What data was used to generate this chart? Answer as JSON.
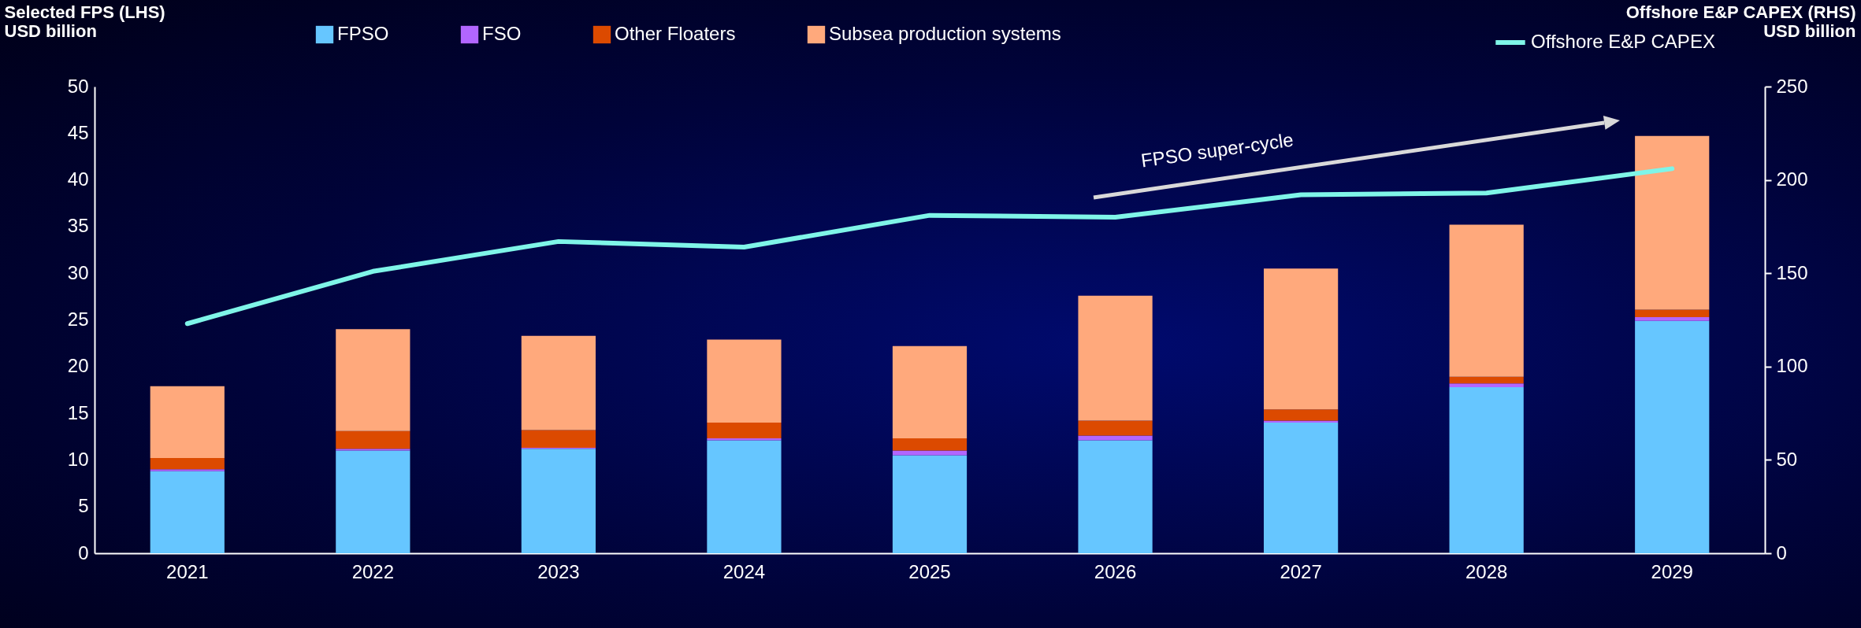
{
  "chart_data": {
    "type": "bar",
    "stacked": true,
    "ylabel": "Selected FPS (LHS)\nUSD billion",
    "y2label": "Offshore E&P CAPEX (RHS)\nUSD billion",
    "categories": [
      "2021",
      "2022",
      "2023",
      "2024",
      "2025",
      "2026",
      "2027",
      "2028",
      "2029"
    ],
    "series": [
      {
        "name": "FPSO",
        "color": "#66c6ff",
        "values": [
          8.8,
          11.0,
          11.2,
          12.1,
          10.5,
          12.1,
          14.0,
          17.8,
          24.9
        ]
      },
      {
        "name": "FSO",
        "color": "#b266ff",
        "values": [
          0.2,
          0.2,
          0.1,
          0.2,
          0.5,
          0.5,
          0.2,
          0.4,
          0.4
        ]
      },
      {
        "name": "Other Floaters",
        "color": "#dc4a00",
        "values": [
          1.2,
          1.9,
          1.9,
          1.7,
          1.3,
          1.6,
          1.2,
          0.7,
          0.8
        ]
      },
      {
        "name": "Subsea production systems",
        "color": "#ffa97c",
        "values": [
          7.7,
          10.9,
          10.1,
          8.9,
          9.9,
          13.4,
          15.1,
          16.3,
          18.6
        ]
      },
      {
        "name": "Offshore E&P CAPEX",
        "color": "#7ff5e8",
        "type": "line",
        "axis": "y2",
        "values": [
          123,
          151,
          167,
          164,
          181,
          180,
          192,
          193,
          206
        ]
      }
    ],
    "ylim": [
      0,
      50
    ],
    "yticks": [
      0,
      5,
      10,
      15,
      20,
      25,
      30,
      35,
      40,
      45,
      50
    ],
    "y2lim": [
      0,
      250
    ],
    "y2ticks": [
      0,
      50,
      100,
      150,
      200,
      250
    ],
    "legend": "top",
    "annotations": [
      "FPSO super-cycle"
    ]
  }
}
